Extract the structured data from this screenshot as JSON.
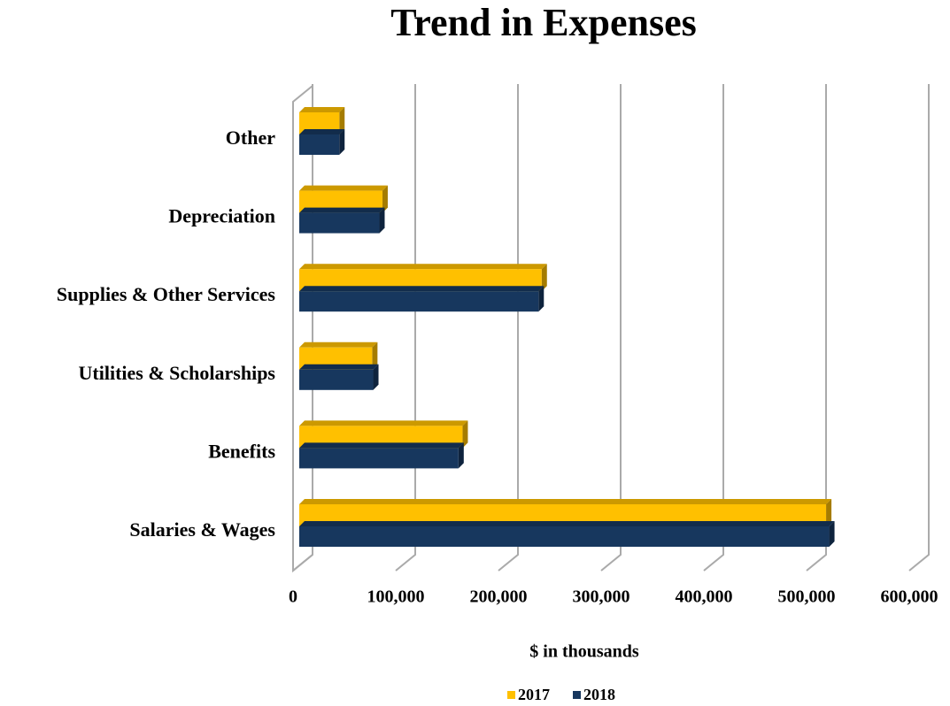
{
  "chart_data": {
    "type": "bar3d_horizontal",
    "title": "Trend in Expenses",
    "x_label": "$ in thousands",
    "categories": [
      "Salaries & Wages",
      "Benefits",
      "Utilities & Scholarships",
      "Supplies & Other Services",
      "Depreciation",
      "Other"
    ],
    "series": [
      {
        "name": "2017",
        "color": "#FFC000",
        "values": [
          513000,
          159000,
          71000,
          236000,
          81000,
          39000
        ]
      },
      {
        "name": "2018",
        "color": "#17375E",
        "values": [
          516000,
          155000,
          72000,
          233000,
          78000,
          39000
        ]
      }
    ],
    "xlim": [
      0,
      600000
    ],
    "xticks": [
      {
        "value": 0,
        "label": "0"
      },
      {
        "value": 100000,
        "label": "100,000"
      },
      {
        "value": 200000,
        "label": "200,000"
      },
      {
        "value": 300000,
        "label": "300,000"
      },
      {
        "value": 400000,
        "label": "400,000"
      },
      {
        "value": 500000,
        "label": "500,000"
      },
      {
        "value": 600000,
        "label": "600,000"
      }
    ],
    "grid": true,
    "legend": "bottom"
  }
}
